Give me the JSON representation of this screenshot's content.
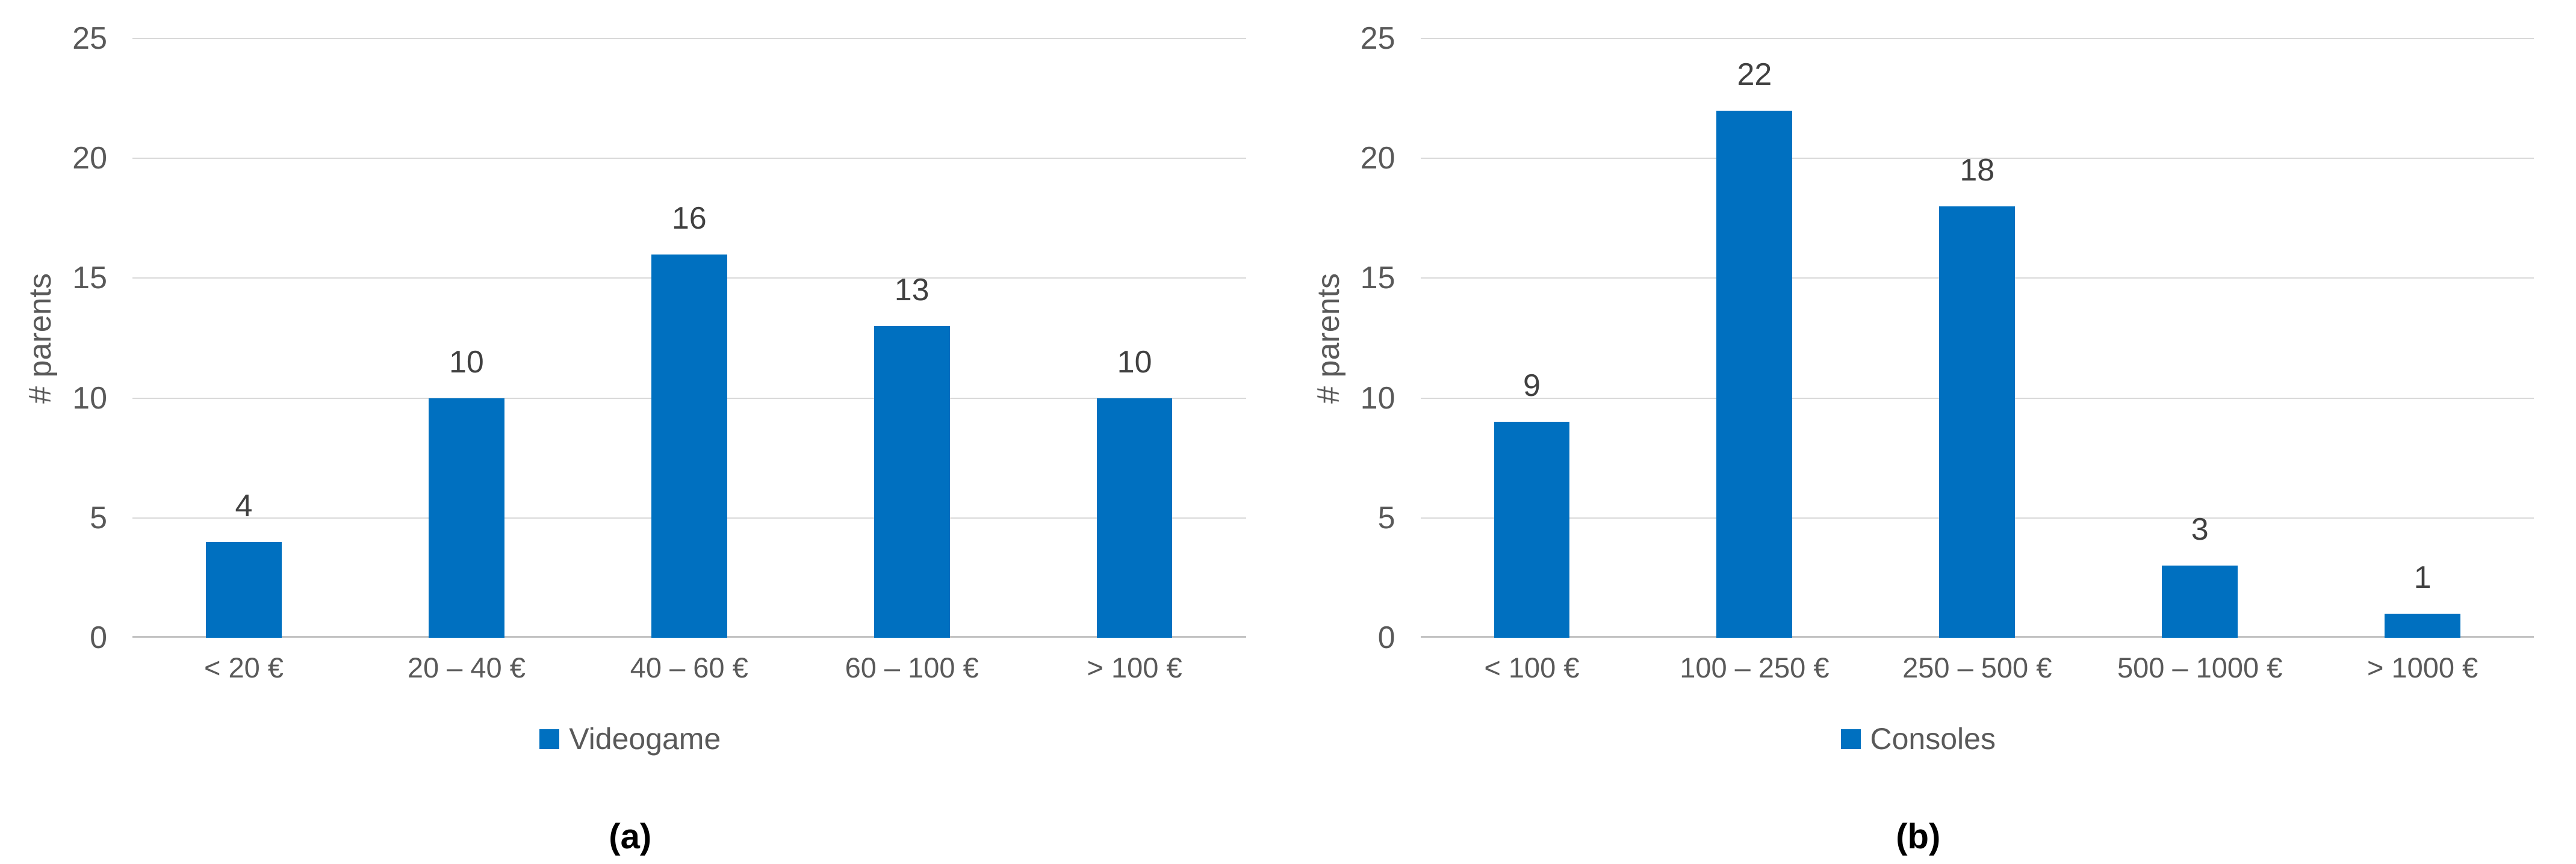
{
  "colors": {
    "bar_fill": "#0070C0",
    "gridline": "#D9D9D9",
    "axis_line": "#C3C3C3",
    "axis_text": "#595959",
    "value_label_text": "#404040",
    "caption_text": "#000000"
  },
  "chart_data": [
    {
      "type": "bar",
      "panel": "a",
      "caption": "(a)",
      "title": "",
      "xlabel": "",
      "ylabel": "# parents",
      "ylim": [
        0,
        25
      ],
      "yticks": [
        0,
        5,
        10,
        15,
        20,
        25
      ],
      "grid": true,
      "legend": {
        "label": "Videogame",
        "position": "bottom"
      },
      "categories": [
        "< 20 €",
        "20 – 40 €",
        "40 – 60 €",
        "60 – 100 €",
        "> 100 €"
      ],
      "values": [
        4,
        10,
        16,
        13,
        10
      ]
    },
    {
      "type": "bar",
      "panel": "b",
      "caption": "(b)",
      "title": "",
      "xlabel": "",
      "ylabel": "# parents",
      "ylim": [
        0,
        25
      ],
      "yticks": [
        0,
        5,
        10,
        15,
        20,
        25
      ],
      "grid": true,
      "legend": {
        "label": "Consoles",
        "position": "bottom"
      },
      "categories": [
        "< 100 €",
        "100 – 250 €",
        "250 – 500 €",
        "500 – 1000 €",
        "> 1000 €"
      ],
      "values": [
        9,
        22,
        18,
        3,
        1
      ]
    }
  ]
}
